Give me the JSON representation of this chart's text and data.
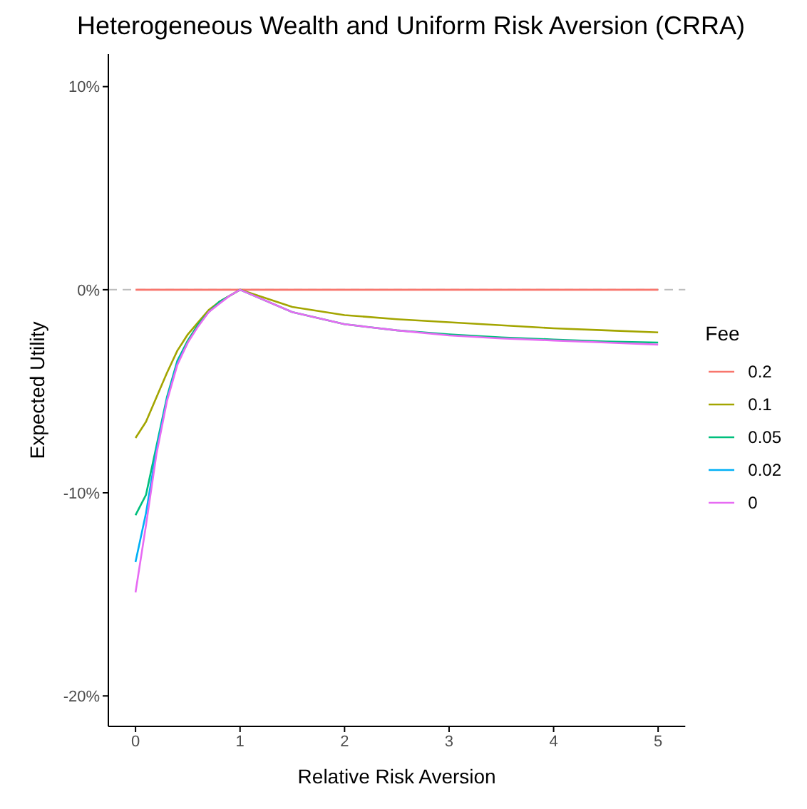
{
  "chart_data": {
    "type": "line",
    "title": "Heterogeneous Wealth and Uniform Risk Aversion (CRRA)",
    "xlabel": "Relative Risk Aversion",
    "ylabel": "Expected Utility",
    "legend_title": "Fee",
    "legend": "right",
    "grid": false,
    "marker": "none",
    "x": [
      0,
      0.1,
      0.2,
      0.3,
      0.4,
      0.5,
      0.6,
      0.7,
      0.8,
      0.9,
      1,
      1.5,
      2,
      2.5,
      3,
      3.5,
      4,
      4.5,
      5
    ],
    "series": [
      {
        "name": "0.2",
        "color": "#f8766d",
        "values": [
          0,
          0,
          0,
          0,
          0,
          0,
          0,
          0,
          0,
          0,
          0,
          0,
          0,
          0,
          0,
          0,
          0,
          0,
          0
        ]
      },
      {
        "name": "0.1",
        "color": "#a3a500",
        "values": [
          -7.3,
          -6.5,
          -5.3,
          -4.1,
          -3.0,
          -2.2,
          -1.6,
          -1.0,
          -0.6,
          -0.3,
          0,
          -0.85,
          -1.25,
          -1.45,
          -1.6,
          -1.75,
          -1.9,
          -2.0,
          -2.1
        ]
      },
      {
        "name": "0.05",
        "color": "#00bf7d",
        "values": [
          -11.1,
          -10.1,
          -7.7,
          -5.3,
          -3.5,
          -2.5,
          -1.7,
          -1.1,
          -0.6,
          -0.3,
          0,
          -1.1,
          -1.7,
          -2.0,
          -2.2,
          -2.35,
          -2.45,
          -2.55,
          -2.6
        ]
      },
      {
        "name": "0.02",
        "color": "#00b0f6",
        "values": [
          -13.4,
          -11.0,
          -7.9,
          -5.4,
          -3.6,
          -2.6,
          null,
          null,
          null,
          null,
          null,
          null,
          null,
          null,
          null,
          null,
          null,
          null,
          null
        ]
      },
      {
        "name": "0",
        "color": "#e76bf3",
        "values": [
          -14.9,
          -11.6,
          -8.1,
          -5.5,
          -3.7,
          -2.6,
          -1.8,
          -1.1,
          -0.7,
          -0.3,
          0,
          -1.1,
          -1.7,
          -2.0,
          -2.25,
          -2.4,
          -2.5,
          -2.6,
          -2.7
        ]
      }
    ],
    "xlim": [
      -0.26,
      5.26
    ],
    "xticks": [
      0,
      1,
      2,
      3,
      4,
      5
    ],
    "ylim": [
      -21.5,
      11.6
    ],
    "yticks": [
      {
        "value": 10,
        "label": "10%"
      },
      {
        "value": 0,
        "label": "0%"
      },
      {
        "value": -10,
        "label": "-10%"
      },
      {
        "value": -20,
        "label": "-20%"
      }
    ],
    "ref_lines": [
      {
        "axis": "y",
        "value": 0,
        "label": null,
        "color": "#bebebe",
        "line_style": "dashed"
      }
    ]
  }
}
